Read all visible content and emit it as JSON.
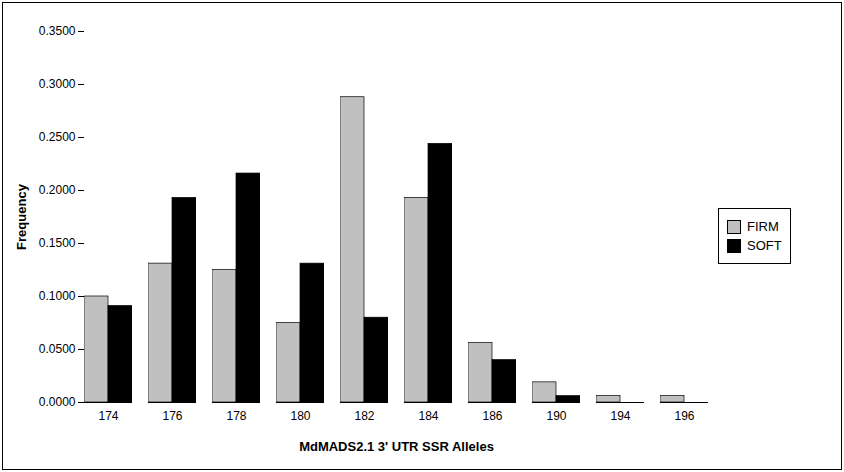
{
  "chart_data": {
    "type": "bar",
    "x_label": "MdMADS2.1 3' UTR SSR Alleles",
    "y_label": "Frequency",
    "categories": [
      "174",
      "176",
      "178",
      "180",
      "182",
      "184",
      "186",
      "190",
      "194",
      "196"
    ],
    "series": [
      {
        "name": "FIRM",
        "color": "#c0c0c0",
        "values": [
          0.1,
          0.131,
          0.125,
          0.075,
          0.288,
          0.193,
          0.056,
          0.019,
          0.006,
          0.006
        ]
      },
      {
        "name": "SOFT",
        "color": "#000000",
        "values": [
          0.091,
          0.193,
          0.216,
          0.131,
          0.08,
          0.244,
          0.04,
          0.006,
          0,
          0
        ]
      }
    ],
    "ylim": [
      0,
      0.35
    ],
    "yticks": [
      {
        "value": 0,
        "label": "0.0000"
      },
      {
        "value": 0.05,
        "label": "0.0500"
      },
      {
        "value": 0.1,
        "label": "0.1000"
      },
      {
        "value": 0.15,
        "label": "0.1500"
      },
      {
        "value": 0.2,
        "label": "0.2000"
      },
      {
        "value": 0.25,
        "label": "0.2500"
      },
      {
        "value": 0.3,
        "label": "0.3000"
      },
      {
        "value": 0.35,
        "label": "0.3500"
      }
    ],
    "grid": false,
    "legend": "right"
  }
}
